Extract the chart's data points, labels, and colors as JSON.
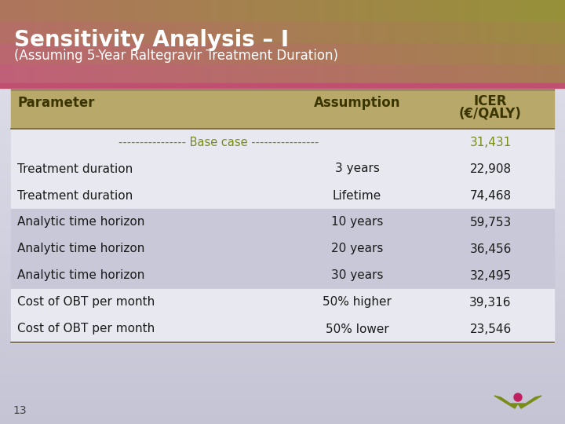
{
  "title": "Sensitivity Analysis – I",
  "subtitle": "(Assuming 5-Year Raltegravir Treatment Duration)",
  "title_color": "#ffffff",
  "subtitle_color": "#ffffff",
  "header_color_left": "#c0607a",
  "header_color_right": "#a8a840",
  "header_color_top_right": "#b8b840",
  "table_header_bg": "#b8a96a",
  "table_header_text": "#3a3500",
  "col_headers": [
    "Parameter",
    "Assumption",
    "ICER\n(€/QALY)"
  ],
  "base_case_label": "---------------- Base case ----------------",
  "base_case_icer": "31,431",
  "base_case_color": "#7a8c18",
  "rows": [
    {
      "parameter": "Treatment duration",
      "assumption": "3 years",
      "icer": "22,908",
      "shaded": false
    },
    {
      "parameter": "Treatment duration",
      "assumption": "Lifetime",
      "icer": "74,468",
      "shaded": false
    },
    {
      "parameter": "Analytic time horizon",
      "assumption": "10 years",
      "icer": "59,753",
      "shaded": true
    },
    {
      "parameter": "Analytic time horizon",
      "assumption": "20 years",
      "icer": "36,456",
      "shaded": true
    },
    {
      "parameter": "Analytic time horizon",
      "assumption": "30 years",
      "icer": "32,495",
      "shaded": true
    },
    {
      "parameter": "Cost of OBT per month",
      "assumption": "50% higher",
      "icer": "39,316",
      "shaded": false
    },
    {
      "parameter": "Cost of OBT per month",
      "assumption": "50% lower",
      "icer": "23,546",
      "shaded": false
    }
  ],
  "row_shaded_bg": "#c8c8d8",
  "row_white_bg": "#e8e8f0",
  "table_text_color": "#1a1a1a",
  "page_number": "13",
  "footer_logo_color": "#7a8c18",
  "footer_dot_color": "#c02060",
  "bg_color": "#d8d8e4",
  "body_bg_top": "#dcdce8",
  "body_bg_bottom": "#c8c8d8"
}
